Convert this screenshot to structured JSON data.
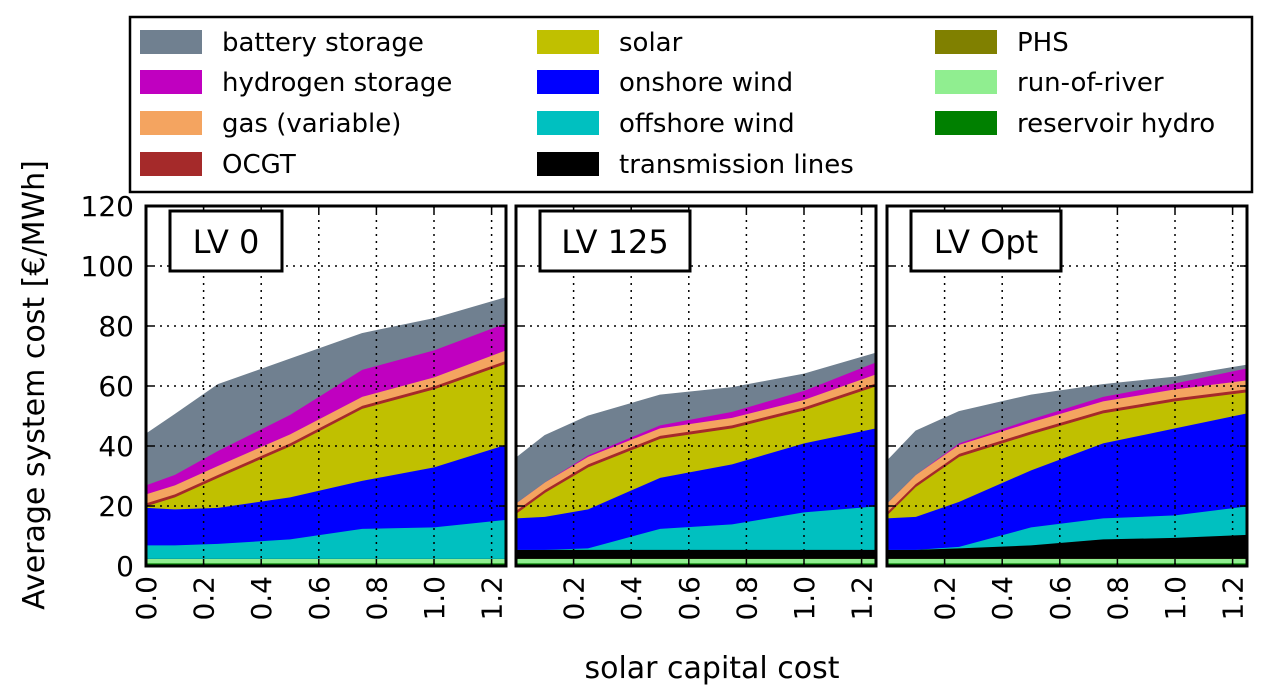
{
  "chart_data": {
    "type": "area",
    "stacked": true,
    "xlabel": "solar capital cost",
    "ylabel": "Average system cost [€/MWh]",
    "ylim": [
      0,
      120
    ],
    "xlim": [
      0,
      1.25
    ],
    "y_ticks": [
      "0",
      "20",
      "40",
      "60",
      "80",
      "100",
      "120"
    ],
    "x_ticks": [
      "0.0",
      "0.2",
      "0.4",
      "0.6",
      "0.8",
      "1.0",
      "1.2"
    ],
    "grid": true,
    "legend": {
      "placement": "top",
      "columns": 3,
      "entries": [
        {
          "label": "battery storage",
          "color": "#708090"
        },
        {
          "label": "hydrogen storage",
          "color": "#c000c0"
        },
        {
          "label": "gas (variable)",
          "color": "#f4a460"
        },
        {
          "label": "OCGT",
          "color": "#a52a2a"
        },
        {
          "label": "solar",
          "color": "#c0c000"
        },
        {
          "label": "onshore wind",
          "color": "#0000ff"
        },
        {
          "label": "offshore wind",
          "color": "#00c0c0"
        },
        {
          "label": "transmission lines",
          "color": "#000000"
        },
        {
          "label": "PHS",
          "color": "#808000"
        },
        {
          "label": "run-of-river",
          "color": "#90ee90"
        },
        {
          "label": "reservoir hydro",
          "color": "#008000"
        }
      ]
    },
    "panels": [
      {
        "label": "LV 0",
        "x_tick_labels": [
          "0.0",
          "0.2",
          "0.4",
          "0.6",
          "0.8",
          "1.0",
          "1.2"
        ],
        "x": [
          0,
          0.1,
          0.25,
          0.5,
          0.75,
          1.0,
          1.25
        ],
        "series": [
          {
            "name": "reservoir hydro",
            "values": [
              1,
              1,
              1,
              1,
              1,
              1,
              1
            ]
          },
          {
            "name": "run-of-river",
            "values": [
              1.5,
              1.5,
              1.5,
              1.5,
              1.5,
              1.5,
              1.5
            ]
          },
          {
            "name": "PHS",
            "values": [
              0,
              0,
              0,
              0,
              0,
              0,
              0
            ]
          },
          {
            "name": "transmission lines",
            "values": [
              0,
              0,
              0,
              0,
              0,
              0,
              0
            ]
          },
          {
            "name": "offshore wind",
            "values": [
              4.5,
              4.5,
              5,
              6.5,
              10,
              10.5,
              13
            ]
          },
          {
            "name": "onshore wind",
            "values": [
              12.5,
              12,
              12,
              14,
              16,
              20,
              25
            ]
          },
          {
            "name": "solar",
            "values": [
              0.5,
              4,
              10,
              17,
              24,
              26,
              27
            ]
          },
          {
            "name": "OCGT",
            "values": [
              1,
              1,
              1,
              1,
              1,
              1,
              1
            ]
          },
          {
            "name": "gas (variable)",
            "values": [
              3,
              3,
              3,
              3,
              3,
              3,
              3.5
            ]
          },
          {
            "name": "hydrogen storage",
            "values": [
              3,
              3.5,
              5,
              6.5,
              9,
              9,
              9
            ]
          },
          {
            "name": "battery storage",
            "values": [
              17,
              20,
              22,
              18.5,
              12,
              10.5,
              8.5
            ]
          }
        ]
      },
      {
        "label": "LV 125",
        "x_tick_labels": [
          "",
          "0.2",
          "0.4",
          "0.6",
          "0.8",
          "1.0",
          "1.2"
        ],
        "x": [
          0,
          0.1,
          0.25,
          0.5,
          0.75,
          1.0,
          1.25
        ],
        "series": [
          {
            "name": "reservoir hydro",
            "values": [
              1,
              1,
              1,
              1,
              1,
              1,
              1
            ]
          },
          {
            "name": "run-of-river",
            "values": [
              1.5,
              1.5,
              1.5,
              1.5,
              1.5,
              1.5,
              1.5
            ]
          },
          {
            "name": "PHS",
            "values": [
              0,
              0,
              0,
              0,
              0,
              0,
              0
            ]
          },
          {
            "name": "transmission lines",
            "values": [
              3,
              3,
              3,
              3,
              3,
              3,
              3
            ]
          },
          {
            "name": "offshore wind",
            "values": [
              0,
              0,
              0.5,
              7,
              8.5,
              12.5,
              14.5
            ]
          },
          {
            "name": "onshore wind",
            "values": [
              10.5,
              11,
              13,
              17,
              20,
              23,
              26
            ]
          },
          {
            "name": "solar",
            "values": [
              1.5,
              8,
              14,
              13,
              12,
              11,
              14
            ]
          },
          {
            "name": "OCGT",
            "values": [
              1,
              1,
              1,
              1,
              1,
              1,
              1
            ]
          },
          {
            "name": "gas (variable)",
            "values": [
              2.5,
              2.5,
              2.5,
              2.5,
              2.5,
              2.5,
              3
            ]
          },
          {
            "name": "hydrogen storage",
            "values": [
              0,
              0,
              0.5,
              1,
              2,
              3,
              4
            ]
          },
          {
            "name": "battery storage",
            "values": [
              15,
              15.5,
              13,
              10,
              8,
              5.5,
              3
            ]
          }
        ]
      },
      {
        "label": "LV Opt",
        "x_tick_labels": [
          "",
          "0.2",
          "0.4",
          "0.6",
          "0.8",
          "1.0",
          "1.2"
        ],
        "x": [
          0,
          0.1,
          0.25,
          0.5,
          0.75,
          1.0,
          1.25
        ],
        "series": [
          {
            "name": "reservoir hydro",
            "values": [
              1,
              1,
              1,
              1,
              1,
              1,
              1
            ]
          },
          {
            "name": "run-of-river",
            "values": [
              1.5,
              1.5,
              1.5,
              1.5,
              1.5,
              1.5,
              1.5
            ]
          },
          {
            "name": "PHS",
            "values": [
              0,
              0,
              0,
              0,
              0,
              0,
              0
            ]
          },
          {
            "name": "transmission lines",
            "values": [
              3,
              3,
              3.5,
              4.5,
              6.5,
              7,
              8
            ]
          },
          {
            "name": "offshore wind",
            "values": [
              0,
              0,
              0.5,
              6,
              7,
              7.5,
              9.5
            ]
          },
          {
            "name": "onshore wind",
            "values": [
              10.5,
              11,
              15,
              19,
              25,
              29,
              31
            ]
          },
          {
            "name": "solar",
            "values": [
              1,
              10,
              15,
              12,
              10,
              9,
              7
            ]
          },
          {
            "name": "OCGT",
            "values": [
              1,
              1,
              1,
              1,
              1,
              1,
              1
            ]
          },
          {
            "name": "gas (variable)",
            "values": [
              3,
              3,
              3,
              3,
              3,
              3,
              3
            ]
          },
          {
            "name": "hydrogen storage",
            "values": [
              0,
              0,
              0.5,
              1,
              1.5,
              2,
              4
            ]
          },
          {
            "name": "battery storage",
            "values": [
              14,
              14.5,
              10.5,
              8,
              4,
              2,
              1
            ]
          }
        ]
      }
    ]
  }
}
